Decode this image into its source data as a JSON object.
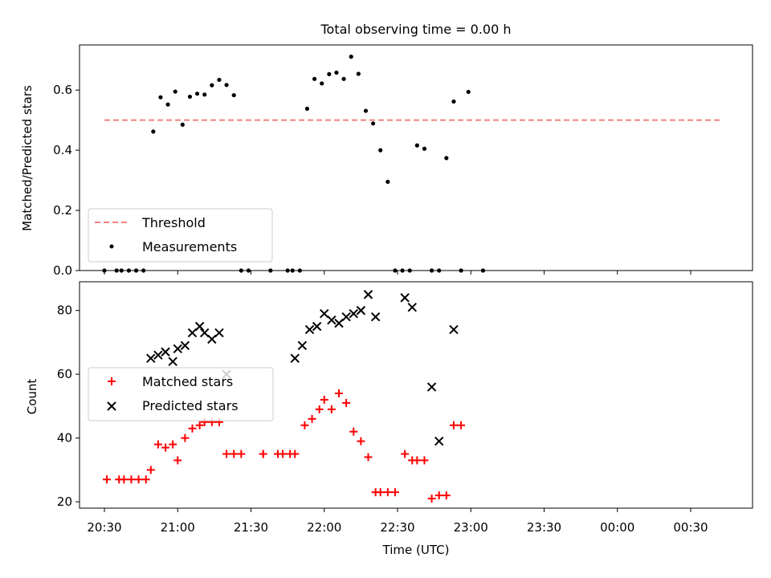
{
  "title": "Total observing time = 0.00 h",
  "chart_data": [
    {
      "type": "scatter",
      "ylabel": "Matched/Predicted stars",
      "ylim": [
        0,
        0.75
      ],
      "yticks": [
        "0.0",
        "0.2",
        "0.4",
        "0.6"
      ],
      "ytick_values": [
        0,
        0.2,
        0.4,
        0.6
      ],
      "legend_position": "lower-left",
      "threshold": {
        "name": "Threshold",
        "value": 0.5,
        "x_range": [
          "20:30",
          "00:43"
        ],
        "color": "#f08080"
      },
      "series": [
        {
          "name": "Measurements",
          "color": "#000000",
          "points": [
            [
              "20:30",
              0
            ],
            [
              "20:35",
              0
            ],
            [
              "20:37",
              0
            ],
            [
              "20:40",
              0
            ],
            [
              "20:43",
              0
            ],
            [
              "20:46",
              0
            ],
            [
              "20:50",
              0.462
            ],
            [
              "20:53",
              0.576
            ],
            [
              "20:56",
              0.552
            ],
            [
              "20:59",
              0.595
            ],
            [
              "21:02",
              0.485
            ],
            [
              "21:05",
              0.578
            ],
            [
              "21:08",
              0.588
            ],
            [
              "21:11",
              0.585
            ],
            [
              "21:14",
              0.616
            ],
            [
              "21:17",
              0.634
            ],
            [
              "21:20",
              0.617
            ],
            [
              "21:23",
              0.583
            ],
            [
              "21:26",
              0
            ],
            [
              "21:29",
              0
            ],
            [
              "21:38",
              0
            ],
            [
              "21:45",
              0
            ],
            [
              "21:47",
              0
            ],
            [
              "21:50",
              0
            ],
            [
              "21:53",
              0.538
            ],
            [
              "21:56",
              0.637
            ],
            [
              "21:59",
              0.622
            ],
            [
              "22:02",
              0.653
            ],
            [
              "22:05",
              0.658
            ],
            [
              "22:08",
              0.637
            ],
            [
              "22:11",
              0.711
            ],
            [
              "22:14",
              0.654
            ],
            [
              "22:17",
              0.531
            ],
            [
              "22:20",
              0.489
            ],
            [
              "22:23",
              0.4
            ],
            [
              "22:26",
              0.295
            ],
            [
              "22:29",
              0
            ],
            [
              "22:32",
              0
            ],
            [
              "22:35",
              0
            ],
            [
              "22:38",
              0.416
            ],
            [
              "22:41",
              0.405
            ],
            [
              "22:44",
              0
            ],
            [
              "22:47",
              0
            ],
            [
              "22:50",
              0.374
            ],
            [
              "22:53",
              0.562
            ],
            [
              "22:56",
              0
            ],
            [
              "22:59",
              0.594
            ],
            [
              "23:05",
              0
            ]
          ]
        }
      ]
    },
    {
      "type": "scatter",
      "xlabel": "Time (UTC)",
      "ylabel": "Count",
      "ylim": [
        18,
        89
      ],
      "yticks": [
        "20",
        "40",
        "60",
        "80"
      ],
      "ytick_values": [
        20,
        40,
        60,
        80
      ],
      "xticks": [
        "20:30",
        "21:00",
        "21:30",
        "22:00",
        "22:30",
        "23:00",
        "23:30",
        "00:00",
        "00:30"
      ],
      "legend_position": "center-left",
      "series": [
        {
          "name": "Matched stars",
          "color": "#ff0000",
          "marker": "+",
          "points": [
            [
              "20:31",
              27
            ],
            [
              "20:36",
              27
            ],
            [
              "20:38",
              27
            ],
            [
              "20:41",
              27
            ],
            [
              "20:44",
              27
            ],
            [
              "20:47",
              27
            ],
            [
              "20:49",
              30
            ],
            [
              "20:52",
              38
            ],
            [
              "20:55",
              37
            ],
            [
              "20:58",
              38
            ],
            [
              "21:00",
              33
            ],
            [
              "21:03",
              40
            ],
            [
              "21:06",
              43
            ],
            [
              "21:09",
              44
            ],
            [
              "21:11",
              45
            ],
            [
              "21:14",
              45
            ],
            [
              "21:17",
              45
            ],
            [
              "21:20",
              35
            ],
            [
              "21:23",
              35
            ],
            [
              "21:26",
              35
            ],
            [
              "21:35",
              35
            ],
            [
              "21:35",
              35
            ],
            [
              "21:41",
              35
            ],
            [
              "21:43",
              35
            ],
            [
              "21:46",
              35
            ],
            [
              "21:48",
              35
            ],
            [
              "21:52",
              44
            ],
            [
              "21:55",
              46
            ],
            [
              "21:58",
              49
            ],
            [
              "22:00",
              52
            ],
            [
              "22:03",
              49
            ],
            [
              "22:06",
              54
            ],
            [
              "22:09",
              51
            ],
            [
              "22:12",
              42
            ],
            [
              "22:15",
              39
            ],
            [
              "22:18",
              34
            ],
            [
              "22:21",
              23
            ],
            [
              "22:23",
              23
            ],
            [
              "22:26",
              23
            ],
            [
              "22:29",
              23
            ],
            [
              "22:33",
              35
            ],
            [
              "22:36",
              33
            ],
            [
              "22:38",
              33
            ],
            [
              "22:41",
              33
            ],
            [
              "22:44",
              21
            ],
            [
              "22:47",
              22
            ],
            [
              "22:50",
              22
            ],
            [
              "22:53",
              44
            ],
            [
              "22:56",
              44
            ]
          ]
        },
        {
          "name": "Predicted stars",
          "color": "#000000",
          "marker": "x",
          "points": [
            [
              "20:49",
              65
            ],
            [
              "20:52",
              66
            ],
            [
              "20:55",
              67
            ],
            [
              "20:58",
              64
            ],
            [
              "21:00",
              68
            ],
            [
              "21:03",
              69
            ],
            [
              "21:06",
              73
            ],
            [
              "21:09",
              75
            ],
            [
              "21:11",
              73
            ],
            [
              "21:14",
              71
            ],
            [
              "21:17",
              73
            ],
            [
              "21:20",
              60
            ],
            [
              "21:48",
              65
            ],
            [
              "21:51",
              69
            ],
            [
              "21:54",
              74
            ],
            [
              "21:57",
              75
            ],
            [
              "22:00",
              79
            ],
            [
              "22:03",
              77
            ],
            [
              "22:06",
              76
            ],
            [
              "22:09",
              78
            ],
            [
              "22:12",
              79
            ],
            [
              "22:15",
              80
            ],
            [
              "22:18",
              85
            ],
            [
              "22:21",
              78
            ],
            [
              "22:33",
              84
            ],
            [
              "22:36",
              81
            ],
            [
              "22:44",
              56
            ],
            [
              "22:47",
              39
            ],
            [
              "22:53",
              74
            ]
          ]
        }
      ]
    }
  ]
}
